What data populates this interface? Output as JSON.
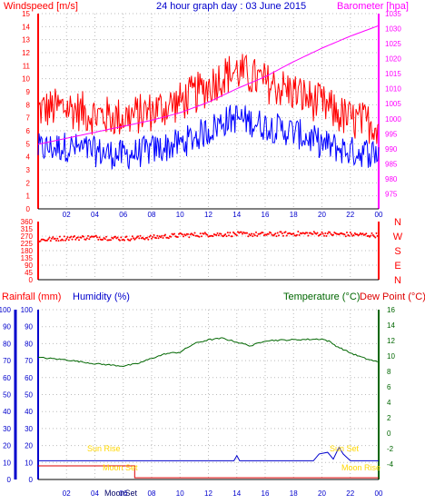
{
  "colors": {
    "wind": "#ff0000",
    "gust": "#dd0000",
    "wind_avg": "#0000ff",
    "baro": "#ff00ff",
    "dir": "#ff0000",
    "rain": "#ff0000",
    "humidity": "#0000cc",
    "temp": "#006600",
    "dew": "#dd0000",
    "moon": "#ffd700",
    "sun": "#ffd700",
    "grid": "#bbbbbb"
  },
  "chart_data": [
    {
      "type": "line",
      "title": "24 hour graph day : 03 June 2015",
      "left_axis_label": "Windspeed [m/s]",
      "right_axis_label": "Barometer [hpa]",
      "ylim": [
        0,
        15
      ],
      "yticks": [
        "0",
        "1",
        "2",
        "3",
        "4",
        "5",
        "6",
        "7",
        "8",
        "9",
        "10",
        "11",
        "12",
        "13",
        "14",
        "15"
      ],
      "y2lim": [
        970,
        1035
      ],
      "y2ticks": [
        "975",
        "980",
        "985",
        "990",
        "995",
        "1000",
        "1005",
        "1010",
        "1015",
        "1020",
        "1025",
        "1030",
        "1035"
      ],
      "xlim": [
        0,
        24
      ],
      "xticks": [
        "02",
        "04",
        "06",
        "08",
        "10",
        "12",
        "14",
        "16",
        "18",
        "20",
        "22",
        "00"
      ],
      "series": [
        {
          "name": "",
          "x": [
            0,
            2,
            4,
            6,
            8,
            10,
            12,
            13,
            14,
            16,
            18,
            20,
            22,
            24
          ],
          "values": [
            7.6,
            7.8,
            7.2,
            7.0,
            7.5,
            8.2,
            9.4,
            10.2,
            10.6,
            9.7,
            9.0,
            8.0,
            6.8,
            6.5
          ]
        },
        {
          "name": "",
          "x": [
            0,
            2,
            4,
            6,
            8,
            10,
            12,
            13,
            14,
            16,
            18,
            20,
            22,
            24
          ],
          "values": [
            4.6,
            4.8,
            4.4,
            4.1,
            4.5,
            5.0,
            6.0,
            6.7,
            7.0,
            6.4,
            5.9,
            5.0,
            4.4,
            4.3
          ]
        },
        {
          "name": "",
          "x": [
            0,
            2,
            4,
            6,
            8,
            10,
            12,
            14,
            16,
            18,
            20,
            22,
            24
          ],
          "values": [
            991.5,
            993.5,
            995.5,
            997.5,
            999.5,
            1002,
            1005.5,
            1010,
            1014,
            1019,
            1023.5,
            1027.5,
            1031
          ]
        }
      ]
    },
    {
      "type": "scatter",
      "right_axis_labels": [
        "N",
        "W",
        "S",
        "E",
        "N"
      ],
      "ylim": [
        0,
        360
      ],
      "yticks": [
        "0",
        "45",
        "90",
        "135",
        "180",
        "225",
        "270",
        "315",
        "360"
      ],
      "xlim": [
        0,
        24
      ],
      "series": [
        {
          "name": "",
          "x": [
            0,
            2,
            4,
            6,
            8,
            10,
            12,
            14,
            16,
            18,
            20,
            22,
            24
          ],
          "values": [
            245,
            258,
            262,
            255,
            262,
            275,
            280,
            282,
            280,
            285,
            285,
            280,
            275
          ]
        }
      ]
    },
    {
      "type": "line",
      "left_axis_label_1": "Rainfall (mm)",
      "left_axis_label_2": "Humidity (%)",
      "right_axis_label_1": "Temperature (°C)",
      "right_axis_label_2": "Dew Point (°C)",
      "ylim": [
        0,
        100
      ],
      "yticks": [
        "0",
        "10",
        "20",
        "30",
        "40",
        "50",
        "60",
        "70",
        "80",
        "90",
        "100"
      ],
      "y2lim": [
        -6,
        16
      ],
      "y2ticks": [
        "-4",
        "-2",
        "0",
        "2",
        "4",
        "6",
        "8",
        "10",
        "12",
        "14",
        "16"
      ],
      "xlim": [
        0,
        24
      ],
      "xticks": [
        "02",
        "04",
        "06",
        "08",
        "10",
        "12",
        "14",
        "16",
        "18",
        "20",
        "22",
        "00"
      ],
      "series": [
        {
          "name": "",
          "x": [
            0,
            2,
            4,
            6,
            7,
            8,
            9,
            10,
            11,
            12,
            13,
            14,
            15,
            16,
            18,
            20,
            20.5,
            21,
            22,
            23,
            24
          ],
          "values": [
            9.8,
            9.5,
            9.0,
            8.7,
            9.0,
            9.7,
            10.3,
            10.5,
            11.6,
            12.1,
            12.3,
            11.8,
            11.3,
            12.0,
            12.1,
            12.2,
            11.9,
            11.3,
            10.4,
            9.7,
            9.2
          ]
        },
        {
          "name": "",
          "x": [
            0,
            13.8,
            14,
            14.2,
            14.4,
            19.4,
            19.8,
            20.4,
            20.8,
            21.2,
            21.5,
            22,
            24
          ],
          "values": [
            11,
            11,
            14,
            11,
            11,
            11,
            15,
            16,
            12,
            19,
            15,
            11,
            11
          ]
        }
      ],
      "annotations": {
        "sunrise": "Sun Rise",
        "sunset": "Sun Set",
        "moonset": "Moon Set",
        "moonrise": "Moon Rise",
        "moonset_bottom": "MoonSet"
      },
      "moon_trace": {
        "x": [
          0,
          6.8,
          6.8,
          24
        ],
        "values": [
          8,
          8,
          1,
          1
        ]
      }
    }
  ]
}
